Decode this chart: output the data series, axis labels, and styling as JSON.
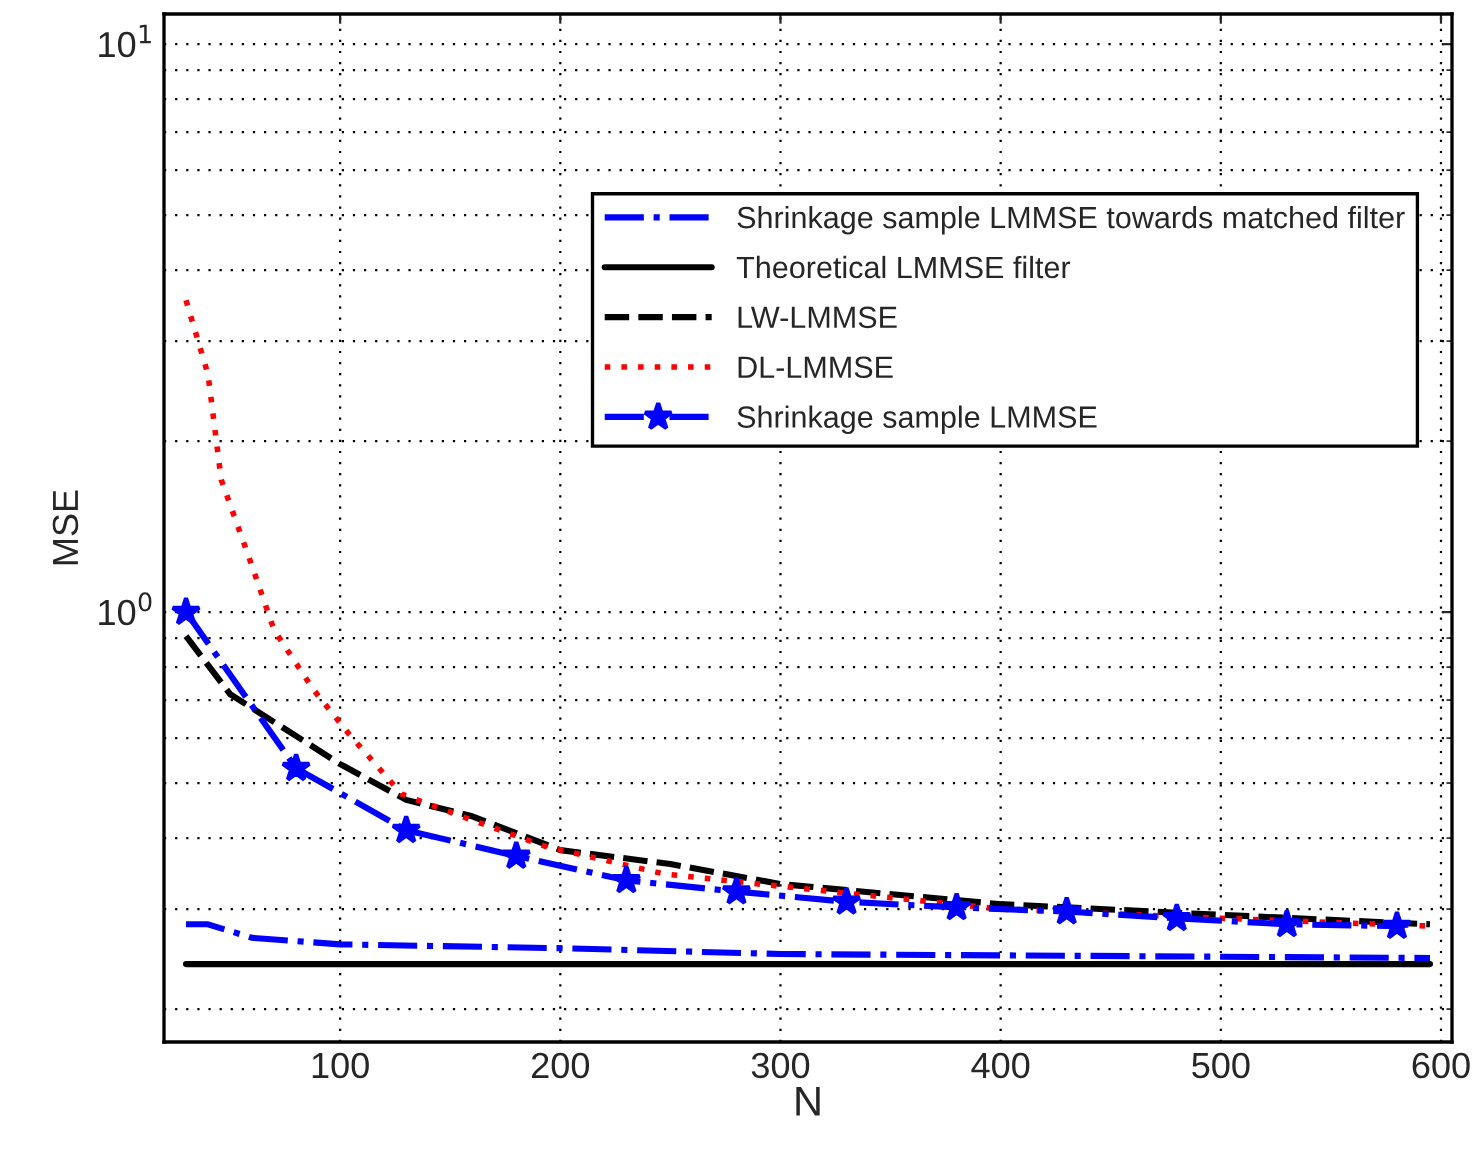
{
  "chart_data": {
    "type": "line",
    "xlabel": "N",
    "ylabel": "MSE",
    "log": "y",
    "xlim": [
      20,
      605
    ],
    "xticks": [
      100,
      200,
      300,
      400,
      500,
      600
    ],
    "ylim": [
      0.175,
      11.3
    ],
    "yticks": [
      {
        "value": 1,
        "label": "10$^{0}$"
      },
      {
        "value": 10,
        "label": "10$^{1}$"
      }
    ],
    "grid": true,
    "legend": "top right",
    "series": [
      {
        "name": "Shrinkage sample LMMSE towards matched filter",
        "color": "#0000ff",
        "line_style": "dashdot",
        "marker": "none",
        "x": [
          30,
          40,
          60,
          100,
          200,
          300,
          595
        ],
        "values": [
          0.282,
          0.282,
          0.267,
          0.26,
          0.256,
          0.25,
          0.246
        ]
      },
      {
        "name": "Theoretical LMMSE filter",
        "color": "#000000",
        "line_style": "solid",
        "marker": "none",
        "x": [
          30,
          595
        ],
        "values": [
          0.24,
          0.24
        ]
      },
      {
        "name": "LW-LMMSE",
        "color": "#000000",
        "line_style": "dashed",
        "marker": "none",
        "x": [
          30,
          50,
          80,
          100,
          130,
          160,
          200,
          250,
          300,
          400,
          500,
          595
        ],
        "values": [
          0.907,
          0.717,
          0.605,
          0.54,
          0.467,
          0.437,
          0.381,
          0.36,
          0.332,
          0.306,
          0.293,
          0.282
        ]
      },
      {
        "name": "DL-LMMSE",
        "color": "#ff0000",
        "line_style": "dotted",
        "marker": "none",
        "x": [
          30,
          40,
          46,
          60,
          70,
          88,
          104,
          128,
          155,
          193,
          247,
          300,
          400,
          500,
          595
        ],
        "values": [
          3.54,
          2.62,
          1.71,
          1.205,
          0.93,
          0.729,
          0.61,
          0.478,
          0.437,
          0.387,
          0.346,
          0.329,
          0.3,
          0.289,
          0.28
        ]
      },
      {
        "name": "Shrinkage sample LMMSE",
        "color": "#0000ff",
        "line_style": "dashdot",
        "marker": "star",
        "x": [
          30,
          80,
          130,
          180,
          230,
          280,
          330,
          380,
          430,
          480,
          530,
          580
        ],
        "values": [
          1.0,
          0.531,
          0.413,
          0.372,
          0.337,
          0.322,
          0.309,
          0.302,
          0.297,
          0.289,
          0.282,
          0.28
        ]
      }
    ]
  }
}
